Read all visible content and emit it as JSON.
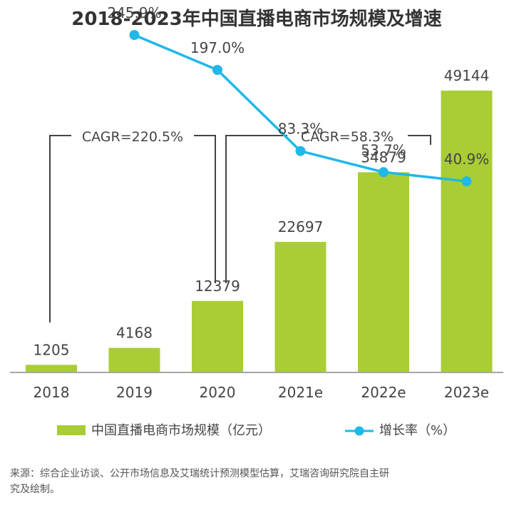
{
  "chart_data": {
    "type": "bar",
    "title": "2018-2023年中国直播电商市场规模及增速",
    "categories": [
      "2018",
      "2019",
      "2020",
      "2021e",
      "2022e",
      "2023e"
    ],
    "series": [
      {
        "name": "中国直播电商市场规模（亿元）",
        "type": "bar",
        "color": "#a9cd35",
        "values": [
          1205,
          4168,
          12379,
          22697,
          34879,
          49144
        ]
      },
      {
        "name": "增长率（%）",
        "type": "line",
        "color": "#1fb8e8",
        "values": [
          null,
          245.9,
          197.0,
          83.3,
          53.7,
          40.9
        ],
        "labels": [
          "",
          "245.9%",
          "197.0%",
          "83.3%",
          "53.7%",
          "40.9%"
        ]
      }
    ],
    "bar_labels": [
      "1205",
      "4168",
      "12379",
      "22697",
      "34879",
      "49144"
    ],
    "ylim": [
      0,
      60000
    ],
    "rate_ylim": [
      0,
      250
    ],
    "annotations": [
      {
        "text": "CAGR=220.5%",
        "from": "2018",
        "to": "2020"
      },
      {
        "text": "CAGR=58.3%",
        "from": "2020",
        "to": "2023e"
      }
    ],
    "legend_position": "bottom",
    "grid": false
  },
  "source": {
    "line1": "来源：综合企业访谈、公开市场信息及艾瑞统计预测模型估算，艾瑞咨询研究院自主研",
    "line2": "究及绘制。"
  }
}
